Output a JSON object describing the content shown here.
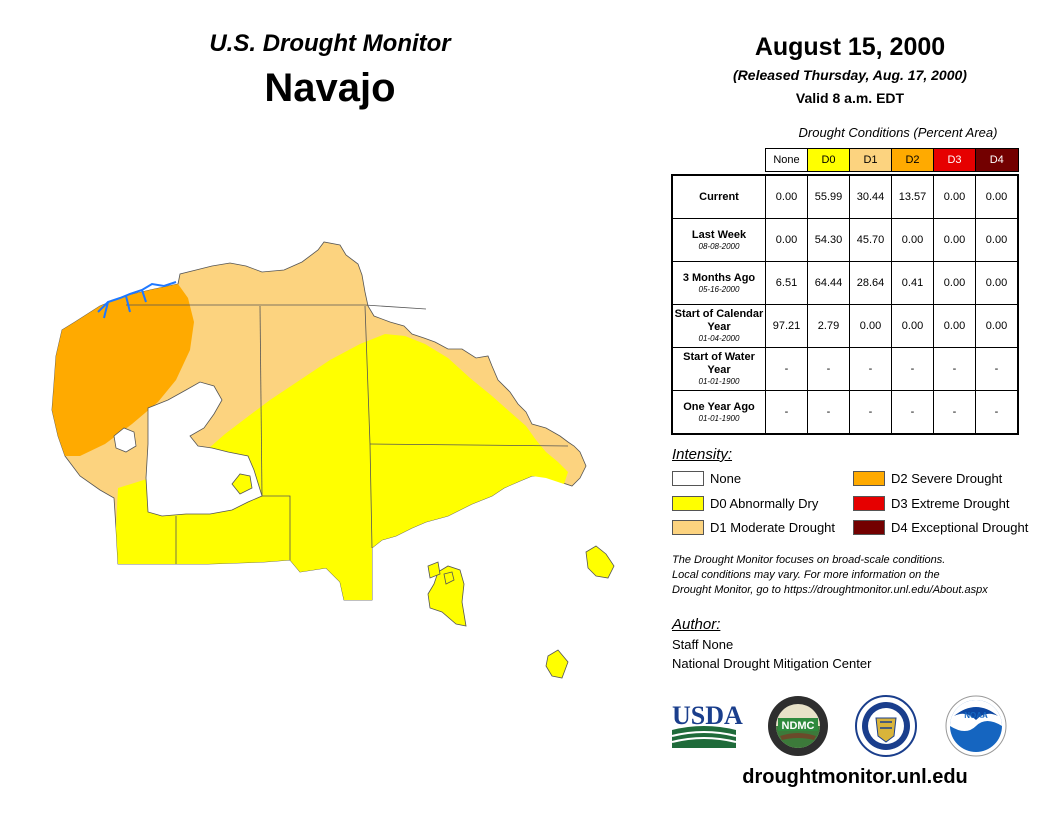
{
  "header": {
    "subtitle": "U.S. Drought Monitor",
    "title": "Navajo",
    "date": "August 15, 2000",
    "released": "(Released Thursday, Aug. 17, 2000)",
    "valid": "Valid 8 a.m. EDT"
  },
  "table": {
    "caption": "Drought Conditions (Percent Area)",
    "columns": [
      {
        "label": "None",
        "color": "#ffffff",
        "text_color": "#000000"
      },
      {
        "label": "D0",
        "color": "#ffff00",
        "text_color": "#000000"
      },
      {
        "label": "D1",
        "color": "#fcd37f",
        "text_color": "#000000"
      },
      {
        "label": "D2",
        "color": "#ffaa00",
        "text_color": "#000000"
      },
      {
        "label": "D3",
        "color": "#e60000",
        "text_color": "#ffffff"
      },
      {
        "label": "D4",
        "color": "#730000",
        "text_color": "#ffffff"
      }
    ],
    "rows": [
      {
        "label": "Current",
        "date": "",
        "values": [
          "0.00",
          "55.99",
          "30.44",
          "13.57",
          "0.00",
          "0.00"
        ]
      },
      {
        "label": "Last Week",
        "date": "08-08-2000",
        "values": [
          "0.00",
          "54.30",
          "45.70",
          "0.00",
          "0.00",
          "0.00"
        ]
      },
      {
        "label": "3 Months Ago",
        "date": "05-16-2000",
        "values": [
          "6.51",
          "64.44",
          "28.64",
          "0.41",
          "0.00",
          "0.00"
        ]
      },
      {
        "label": "Start of Calendar Year",
        "date": "01-04-2000",
        "values": [
          "97.21",
          "2.79",
          "0.00",
          "0.00",
          "0.00",
          "0.00"
        ]
      },
      {
        "label": "Start of Water Year",
        "date": "01-01-1900",
        "values": [
          "-",
          "-",
          "-",
          "-",
          "-",
          "-"
        ]
      },
      {
        "label": "One Year Ago",
        "date": "01-01-1900",
        "values": [
          "-",
          "-",
          "-",
          "-",
          "-",
          "-"
        ]
      }
    ]
  },
  "intensity": {
    "title": "Intensity:",
    "items": [
      {
        "label": "None",
        "color": "#ffffff"
      },
      {
        "label": "D0 Abnormally Dry",
        "color": "#ffff00"
      },
      {
        "label": "D1 Moderate Drought",
        "color": "#fcd37f"
      },
      {
        "label": "D2 Severe Drought",
        "color": "#ffaa00"
      },
      {
        "label": "D3 Extreme Drought",
        "color": "#e60000"
      },
      {
        "label": "D4 Exceptional Drought",
        "color": "#730000"
      }
    ]
  },
  "note": {
    "line1": "The Drought Monitor focuses on broad-scale conditions.",
    "line2": "Local conditions may vary. For more information on the",
    "line3": "Drought Monitor, go to https://droughtmonitor.unl.edu/About.aspx"
  },
  "author": {
    "title": "Author:",
    "name": "Staff None",
    "org": "National Drought Mitigation Center"
  },
  "logos": {
    "usda": "USDA",
    "ndmc": "NDMC",
    "noaa": "NOAA"
  },
  "footer": {
    "url": "droughtmonitor.unl.edu"
  }
}
